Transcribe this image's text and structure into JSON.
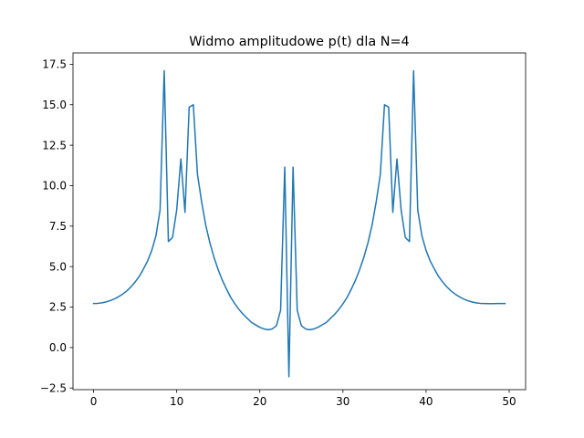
{
  "chart_data": {
    "type": "line",
    "title": "Widmo amplitudowe p(t) dla N=4",
    "xlabel": "",
    "ylabel": "",
    "xlim": [
      -2.475,
      51.975
    ],
    "ylim": [
      -2.6,
      18.2
    ],
    "grid": false,
    "x_ticks": [
      0,
      10,
      20,
      30,
      40,
      50
    ],
    "x_tick_labels": [
      "0",
      "10",
      "20",
      "30",
      "40",
      "50"
    ],
    "y_ticks": [
      -2.5,
      0.0,
      2.5,
      5.0,
      7.5,
      10.0,
      12.5,
      15.0,
      17.5
    ],
    "y_tick_labels": [
      "−2.5",
      "0.0",
      "2.5",
      "5.0",
      "7.5",
      "10.0",
      "12.5",
      "15.0",
      "17.5"
    ],
    "series": [
      {
        "color": "#1f77b4",
        "x": [
          0.0,
          0.5,
          1.0,
          1.5,
          2.0,
          2.5,
          3.0,
          3.5,
          4.0,
          4.5,
          5.0,
          5.5,
          6.0,
          6.5,
          7.0,
          7.5,
          8.0,
          8.5,
          9.0,
          9.5,
          10.0,
          10.5,
          11.0,
          11.5,
          12.0,
          12.5,
          13.0,
          13.5,
          14.0,
          14.5,
          15.0,
          15.5,
          16.0,
          16.5,
          17.0,
          17.5,
          18.0,
          18.5,
          19.0,
          19.5,
          20.0,
          20.5,
          21.0,
          21.5,
          22.0,
          22.5,
          23.0,
          23.5,
          24.0,
          24.5,
          25.0,
          25.5,
          26.0,
          26.5,
          27.0,
          27.5,
          28.0,
          28.5,
          29.0,
          29.5,
          30.0,
          30.5,
          31.0,
          31.5,
          32.0,
          32.5,
          33.0,
          33.5,
          34.0,
          34.5,
          35.0,
          35.5,
          36.0,
          36.5,
          37.0,
          37.5,
          38.0,
          38.5,
          39.0,
          39.5,
          40.0,
          40.5,
          41.0,
          41.5,
          42.0,
          42.5,
          43.0,
          43.5,
          44.0,
          44.5,
          45.0,
          45.5,
          46.0,
          46.5,
          47.0,
          47.5,
          48.0,
          48.5,
          49.0,
          49.5
        ],
        "y": [
          2.72,
          2.73,
          2.76,
          2.82,
          2.9,
          3.0,
          3.14,
          3.3,
          3.5,
          3.75,
          4.05,
          4.4,
          4.85,
          5.35,
          6.0,
          6.9,
          8.5,
          17.1,
          6.55,
          6.8,
          8.5,
          11.65,
          8.35,
          14.85,
          15.0,
          10.7,
          9.0,
          7.55,
          6.45,
          5.55,
          4.8,
          4.15,
          3.6,
          3.1,
          2.7,
          2.35,
          2.05,
          1.8,
          1.55,
          1.4,
          1.25,
          1.15,
          1.1,
          1.15,
          1.35,
          2.3,
          11.15,
          -1.8,
          11.15,
          2.3,
          1.35,
          1.15,
          1.1,
          1.15,
          1.25,
          1.4,
          1.55,
          1.8,
          2.05,
          2.35,
          2.7,
          3.1,
          3.6,
          4.15,
          4.8,
          5.55,
          6.45,
          7.55,
          9.0,
          10.7,
          15.0,
          14.85,
          8.35,
          11.65,
          8.5,
          6.8,
          6.55,
          17.1,
          8.5,
          6.9,
          6.0,
          5.35,
          4.85,
          4.4,
          4.05,
          3.75,
          3.5,
          3.3,
          3.14,
          3.0,
          2.9,
          2.82,
          2.76,
          2.73,
          2.72,
          2.71,
          2.71,
          2.72,
          2.72,
          2.72
        ]
      }
    ]
  }
}
